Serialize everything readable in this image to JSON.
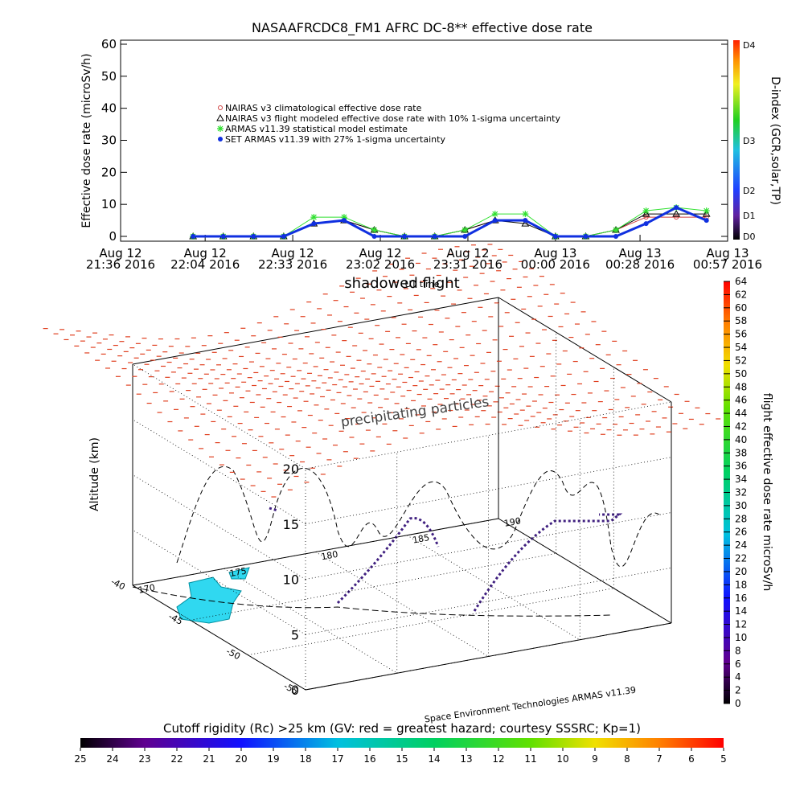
{
  "chart_data": [
    {
      "type": "line",
      "title": "NASAAFRCDC8_FM1 AFRC DC-8** effective dose rate",
      "ylabel": "Effective dose rate (microSv/h)",
      "x": [
        "2016-08-12 22:00",
        "2016-08-12 22:10",
        "2016-08-12 22:20",
        "2016-08-12 22:30",
        "2016-08-12 22:40",
        "2016-08-12 22:50",
        "2016-08-12 23:00",
        "2016-08-12 23:10",
        "2016-08-12 23:20",
        "2016-08-12 23:30",
        "2016-08-12 23:40",
        "2016-08-12 23:50",
        "2016-08-13 00:00",
        "2016-08-13 00:10",
        "2016-08-13 00:20",
        "2016-08-13 00:30",
        "2016-08-13 00:40",
        "2016-08-13 00:50"
      ],
      "xlim": [
        "2016-08-12 21:36",
        "2016-08-13 00:57"
      ],
      "xticks": [
        {
          "value": "2016-08-12 21:36",
          "label": "Aug 12\n21:36 2016"
        },
        {
          "value": "2016-08-12 22:04",
          "label": "Aug 12\n22:04 2016"
        },
        {
          "value": "2016-08-12 22:33",
          "label": "Aug 12\n22:33 2016"
        },
        {
          "value": "2016-08-12 23:02",
          "label": "Aug 12\n23:02 2016"
        },
        {
          "value": "2016-08-12 23:31",
          "label": "Aug 12\n23:31 2016"
        },
        {
          "value": "2016-08-13 00:00",
          "label": "Aug 13\n00:00 2016"
        },
        {
          "value": "2016-08-13 00:28",
          "label": "Aug 13\n00:28 2016"
        },
        {
          "value": "2016-08-13 00:57",
          "label": "Aug 13\n00:57 2016"
        }
      ],
      "ylim": [
        0,
        60
      ],
      "yticks": [
        0,
        10,
        20,
        30,
        40,
        50,
        60
      ],
      "series": [
        {
          "name": "NAIRAS v3 climatological effective dose rate",
          "color": "#d04040",
          "marker": "circle",
          "values": [
            0,
            0,
            0,
            0,
            4,
            5,
            2,
            0,
            0,
            2,
            5,
            5,
            0,
            0,
            2,
            6,
            6,
            6
          ]
        },
        {
          "name": "NAIRAS v3 flight modeled effective dose rate with 10% 1-sigma uncertainty",
          "color": "#000000",
          "marker": "triangle",
          "values": [
            0,
            0,
            0,
            0,
            4,
            5,
            2,
            0,
            0,
            2,
            5,
            4,
            0,
            0,
            2,
            7,
            7,
            7
          ]
        },
        {
          "name": "ARMAS v11.39 statistical model estimate",
          "color": "#30e030",
          "marker": "star",
          "values": [
            0,
            0,
            0,
            0,
            6,
            6,
            2,
            0,
            0,
            2,
            7,
            7,
            0,
            0,
            2,
            8,
            9,
            8
          ]
        },
        {
          "name": "SET ARMAS v11.39 with 27% 1-sigma uncertainty",
          "color": "#1030e0",
          "marker": "dot",
          "values": [
            0,
            0,
            0,
            0,
            4,
            5,
            0,
            0,
            0,
            0,
            5,
            5,
            0,
            0,
            0,
            4,
            9,
            5
          ]
        }
      ],
      "colorbar": {
        "label": "D-index (GCR,solar,TP)",
        "ticks": [
          "D0",
          "D1",
          "D2",
          "D3",
          "D4"
        ]
      }
    },
    {
      "type": "surface3d",
      "title": "shadowed flight",
      "subtitle": "UT time",
      "annotation": "precipitating particles",
      "credit": "Space Environment Technologies ARMAS v11.39",
      "zlabel": "Altitude (km)",
      "zlim": [
        0,
        20
      ],
      "zticks": [
        0,
        5,
        10,
        15,
        20
      ],
      "xlim": [
        170,
        190
      ],
      "xticks": [
        170,
        175,
        180,
        185,
        190
      ],
      "ylim": [
        -55,
        -40
      ],
      "yticks": [
        -40,
        -45,
        -50,
        -55
      ],
      "colorbar": {
        "label": "flight effective dose rate microSv/h",
        "lim": [
          0,
          64
        ],
        "ticks": [
          0,
          2,
          4,
          6,
          8,
          10,
          12,
          14,
          16,
          18,
          20,
          22,
          24,
          26,
          28,
          30,
          32,
          34,
          36,
          38,
          40,
          42,
          44,
          46,
          48,
          50,
          52,
          54,
          56,
          58,
          60,
          62,
          64
        ]
      },
      "colorbar2": {
        "label": "Cutoff rigidity (Rc) >25 km (GV: red = greatest hazard; courtesy SSSRC; Kp=1)",
        "lim": [
          25,
          5
        ],
        "ticks": [
          25,
          24,
          23,
          22,
          21,
          20,
          19,
          18,
          17,
          16,
          15,
          14,
          13,
          12,
          11,
          10,
          9,
          8,
          7,
          6,
          5
        ]
      }
    }
  ]
}
